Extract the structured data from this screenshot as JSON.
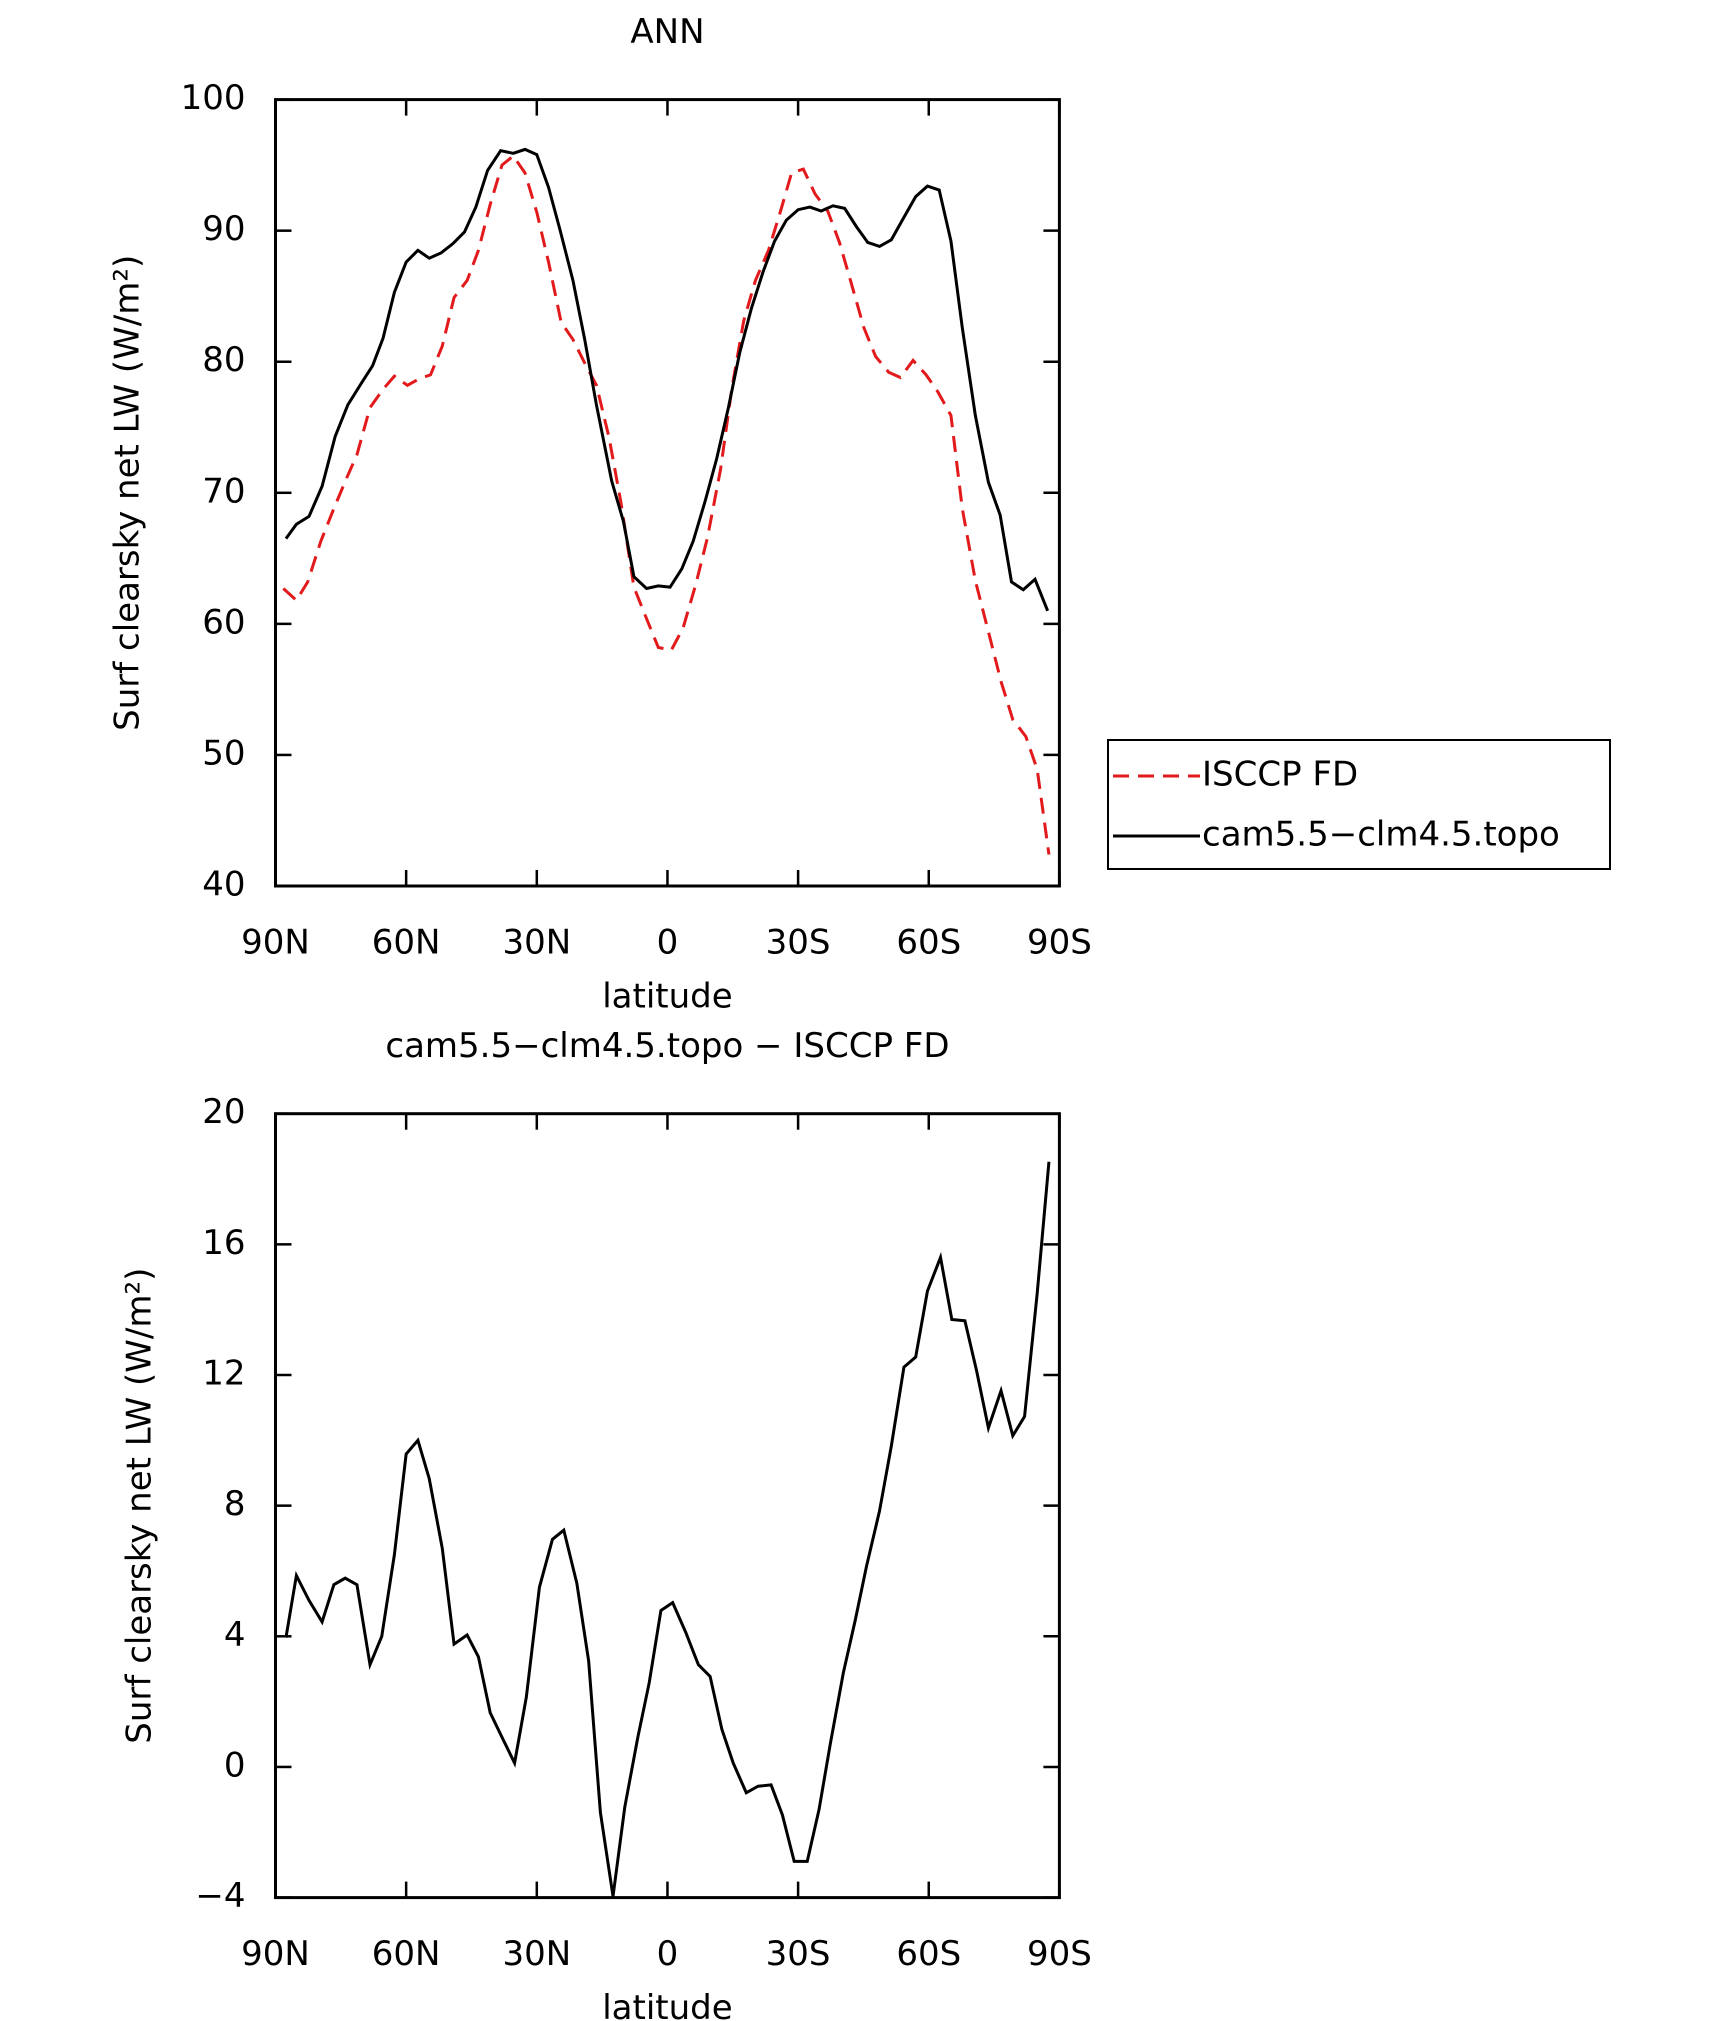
{
  "chart_data": [
    {
      "type": "line",
      "title": "ANN",
      "xlabel": "latitude",
      "ylabel": "Surf clearsky net LW (W/m²)",
      "xlim": [
        90,
        -90
      ],
      "xticks": [
        {
          "value": 90,
          "label": "90N"
        },
        {
          "value": 60,
          "label": "60N"
        },
        {
          "value": 30,
          "label": "30N"
        },
        0,
        {
          "value": -30,
          "label": "30S"
        },
        {
          "value": -60,
          "label": "60S"
        },
        {
          "value": -90,
          "label": "90S"
        }
      ],
      "ylim": [
        40,
        100
      ],
      "yticks": [
        40,
        50,
        60,
        70,
        80,
        90,
        100
      ],
      "legend": "right",
      "series": [
        {
          "name": "ISCCP FD",
          "color": "#e31a1c",
          "dash": true,
          "x": [
            88.2,
            85.2,
            82.6,
            79.6,
            76.6,
            73.7,
            71.3,
            68.3,
            65.3,
            62.7,
            59.7,
            57.0,
            54.4,
            51.7,
            49.0,
            46.0,
            43.4,
            40.7,
            38.0,
            35.4,
            32.7,
            30.0,
            27.3,
            24.4,
            21.7,
            19.0,
            16.3,
            13.4,
            10.7,
            7.7,
            4.8,
            2.1,
            -0.9,
            -3.6,
            -6.5,
            -9.2,
            -12.2,
            -14.8,
            -17.5,
            -20.2,
            -23.2,
            -25.8,
            -28.5,
            -31.2,
            -33.9,
            -36.8,
            -39.5,
            -42.2,
            -45.1,
            -47.8,
            -50.8,
            -53.5,
            -56.4,
            -59.4,
            -62.1,
            -65.1,
            -67.7,
            -70.7,
            -73.7,
            -76.6,
            -79.3,
            -82.3,
            -84.9,
            -87.6
          ],
          "values": [
            62.7,
            61.8,
            63.2,
            66.3,
            68.8,
            71.1,
            72.9,
            76.5,
            77.9,
            78.9,
            78.2,
            78.7,
            79.0,
            81.2,
            84.9,
            86.2,
            88.5,
            92.0,
            95.0,
            95.7,
            94.4,
            91.4,
            87.6,
            83.0,
            81.7,
            79.9,
            78.2,
            74.2,
            69.3,
            62.8,
            60.4,
            58.2,
            58.0,
            59.7,
            63.0,
            66.6,
            71.8,
            78.0,
            83.1,
            86.2,
            88.5,
            91.3,
            94.4,
            94.7,
            92.8,
            91.5,
            89.1,
            86.0,
            82.6,
            80.4,
            79.2,
            78.8,
            80.1,
            79.0,
            77.7,
            75.9,
            68.8,
            63.3,
            59.4,
            55.6,
            52.7,
            51.4,
            48.9,
            42.4
          ]
        },
        {
          "name": "cam5.5−clm4.5.topo",
          "color": "#000000",
          "dash": false,
          "x": [
            87.6,
            85.2,
            82.3,
            79.3,
            76.3,
            73.4,
            70.4,
            67.7,
            65.3,
            62.7,
            60.0,
            57.3,
            54.7,
            52.0,
            49.3,
            46.6,
            44.0,
            41.3,
            38.3,
            35.4,
            32.7,
            30.0,
            27.3,
            24.7,
            21.7,
            19.0,
            16.3,
            12.8,
            10.1,
            7.7,
            4.8,
            2.1,
            -0.6,
            -3.3,
            -5.9,
            -8.6,
            -11.3,
            -14.0,
            -16.6,
            -19.3,
            -22.0,
            -24.6,
            -27.3,
            -30.0,
            -32.7,
            -35.3,
            -38.0,
            -40.7,
            -43.4,
            -46.0,
            -48.7,
            -51.4,
            -54.1,
            -57.0,
            -59.7,
            -62.4,
            -65.1,
            -67.7,
            -70.7,
            -73.7,
            -76.4,
            -79.0,
            -81.7,
            -84.4,
            -87.3
          ],
          "values": [
            66.5,
            67.6,
            68.2,
            70.5,
            74.3,
            76.7,
            78.3,
            79.7,
            81.8,
            85.3,
            87.6,
            88.5,
            87.9,
            88.3,
            89.0,
            89.9,
            91.8,
            94.6,
            96.1,
            95.9,
            96.2,
            95.8,
            93.3,
            90.1,
            86.2,
            81.7,
            76.7,
            70.9,
            67.8,
            63.6,
            62.7,
            62.9,
            62.8,
            64.2,
            66.3,
            69.3,
            72.6,
            76.5,
            80.7,
            84.1,
            86.9,
            89.2,
            90.8,
            91.6,
            91.8,
            91.5,
            91.9,
            91.7,
            90.3,
            89.1,
            88.8,
            89.3,
            90.9,
            92.6,
            93.4,
            93.1,
            89.2,
            82.6,
            75.9,
            70.8,
            68.3,
            63.2,
            62.6,
            63.4,
            61.0
          ]
        }
      ]
    },
    {
      "type": "line",
      "title": "cam5.5−clm4.5.topo − ISCCP FD",
      "xlabel": "latitude",
      "ylabel": "Surf clearsky net LW (W/m²)",
      "xlim": [
        90,
        -90
      ],
      "xticks": [
        {
          "value": 90,
          "label": "90N"
        },
        {
          "value": 60,
          "label": "60N"
        },
        {
          "value": 30,
          "label": "30N"
        },
        0,
        {
          "value": -30,
          "label": "30S"
        },
        {
          "value": -60,
          "label": "60S"
        },
        {
          "value": -90,
          "label": "90S"
        }
      ],
      "ylim": [
        -4,
        20
      ],
      "yticks": [
        {
          "value": -4,
          "label": "−4"
        },
        0,
        4,
        8,
        12,
        16,
        20
      ],
      "series": [
        {
          "color": "#000000",
          "dash": false,
          "x": [
            87.6,
            85.2,
            82.3,
            79.3,
            76.6,
            74.0,
            71.3,
            68.3,
            65.6,
            62.7,
            60.0,
            57.3,
            54.7,
            51.7,
            49.0,
            46.0,
            43.4,
            40.7,
            37.7,
            35.1,
            32.4,
            29.4,
            26.4,
            23.8,
            20.8,
            18.1,
            15.4,
            12.5,
            9.8,
            6.8,
            4.2,
            1.5,
            -1.2,
            -4.2,
            -7.1,
            -9.8,
            -12.5,
            -15.1,
            -18.1,
            -20.8,
            -23.8,
            -26.4,
            -29.1,
            -32.1,
            -34.8,
            -37.4,
            -40.4,
            -43.1,
            -45.7,
            -48.7,
            -51.4,
            -54.3,
            -57.0,
            -59.7,
            -62.7,
            -65.3,
            -68.3,
            -71.0,
            -73.7,
            -76.6,
            -79.3,
            -82.0,
            -84.9,
            -87.6
          ],
          "values": [
            3.96,
            5.86,
            5.1,
            4.44,
            5.58,
            5.78,
            5.58,
            3.13,
            4.0,
            6.5,
            9.58,
            10.0,
            8.83,
            6.69,
            3.76,
            4.04,
            3.37,
            1.66,
            0.83,
            0.12,
            2.14,
            5.5,
            6.97,
            7.25,
            5.62,
            3.25,
            -1.39,
            -3.96,
            -1.23,
            0.91,
            2.57,
            4.79,
            5.03,
            4.12,
            3.13,
            2.77,
            1.15,
            0.12,
            -0.79,
            -0.59,
            -0.55,
            -1.47,
            -2.89,
            -2.89,
            -1.31,
            0.71,
            2.89,
            4.48,
            6.14,
            7.84,
            9.82,
            12.24,
            12.55,
            14.57,
            15.6,
            13.7,
            13.66,
            12.12,
            10.38,
            11.52,
            10.14,
            10.73,
            14.5,
            18.53
          ]
        }
      ]
    }
  ]
}
